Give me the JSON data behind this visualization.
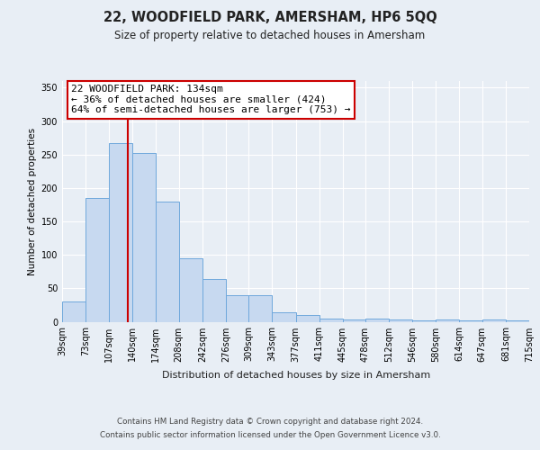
{
  "title": "22, WOODFIELD PARK, AMERSHAM, HP6 5QQ",
  "subtitle": "Size of property relative to detached houses in Amersham",
  "xlabel": "Distribution of detached houses by size in Amersham",
  "ylabel": "Number of detached properties",
  "bar_values": [
    30,
    185,
    267,
    253,
    180,
    95,
    64,
    40,
    40,
    14,
    10,
    5,
    4,
    5,
    3,
    2,
    3,
    2,
    4,
    2
  ],
  "bar_labels": [
    "39sqm",
    "73sqm",
    "107sqm",
    "140sqm",
    "174sqm",
    "208sqm",
    "242sqm",
    "276sqm",
    "309sqm",
    "343sqm",
    "377sqm",
    "411sqm",
    "445sqm",
    "478sqm",
    "512sqm",
    "546sqm",
    "580sqm",
    "614sqm",
    "647sqm",
    "681sqm",
    "715sqm"
  ],
  "bar_edges": [
    39,
    73,
    107,
    140,
    174,
    208,
    242,
    276,
    309,
    343,
    377,
    411,
    445,
    478,
    512,
    546,
    580,
    614,
    647,
    681,
    715
  ],
  "bar_color": "#c7d9f0",
  "bar_edge_color": "#6fa8dc",
  "property_line_x": 134,
  "property_line_color": "#cc0000",
  "ylim": [
    0,
    360
  ],
  "yticks": [
    0,
    50,
    100,
    150,
    200,
    250,
    300,
    350
  ],
  "annotation_title": "22 WOODFIELD PARK: 134sqm",
  "annotation_line1": "← 36% of detached houses are smaller (424)",
  "annotation_line2": "64% of semi-detached houses are larger (753) →",
  "annotation_box_color": "#cc0000",
  "footer_line1": "Contains HM Land Registry data © Crown copyright and database right 2024.",
  "footer_line2": "Contains public sector information licensed under the Open Government Licence v3.0.",
  "background_color": "#e8eef5",
  "plot_background": "#e8eef5"
}
